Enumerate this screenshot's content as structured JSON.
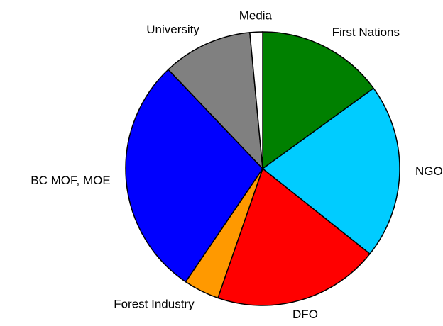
{
  "chart_data": {
    "type": "pie",
    "categories": [
      "First Nations",
      "NGO",
      "DFO",
      "Forest Industry",
      "BC MOF, MOE",
      "University",
      "Media"
    ],
    "values": [
      15,
      20.7,
      19.6,
      4.2,
      28.4,
      10.6,
      1.5
    ],
    "colors": [
      "#008000",
      "#00ccff",
      "#ff0000",
      "#ff9900",
      "#0000ff",
      "#808080",
      "#ffffff"
    ]
  }
}
